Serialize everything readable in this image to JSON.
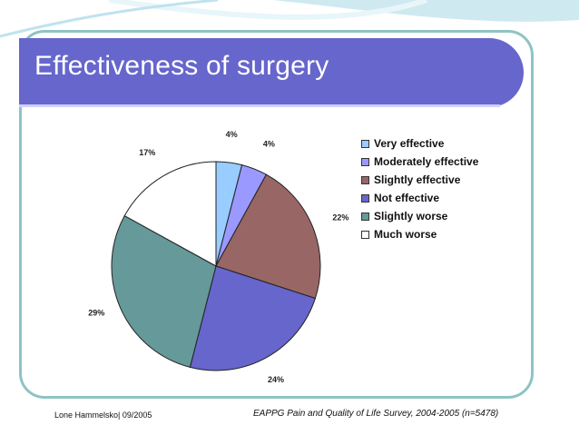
{
  "slide": {
    "title": "Effectiveness of surgery",
    "footer_left": "Lone Hammelsko| 09/2005",
    "footer_right": "EAPPG Pain and Quality of Life Survey, 2004-2005 (n=5478)"
  },
  "colors": {
    "title_bar": "#6666cc",
    "frame_border": "#8fc3c3"
  },
  "chart_data": {
    "type": "pie",
    "legend_position": "right",
    "slices": [
      {
        "name": "Very effective",
        "value": 4,
        "label": "4%",
        "color": "#99ccff"
      },
      {
        "name": "Moderately effective",
        "value": 4,
        "label": "4%",
        "color": "#9999ff"
      },
      {
        "name": "Slightly effective",
        "value": 22,
        "label": "22%",
        "color": "#996666"
      },
      {
        "name": "Not effective",
        "value": 24,
        "label": "24%",
        "color": "#6666cc"
      },
      {
        "name": "Slightly worse",
        "value": 29,
        "label": "29%",
        "color": "#669999"
      },
      {
        "name": "Much worse",
        "value": 17,
        "label": "17%",
        "color": "#ffffff"
      }
    ]
  }
}
